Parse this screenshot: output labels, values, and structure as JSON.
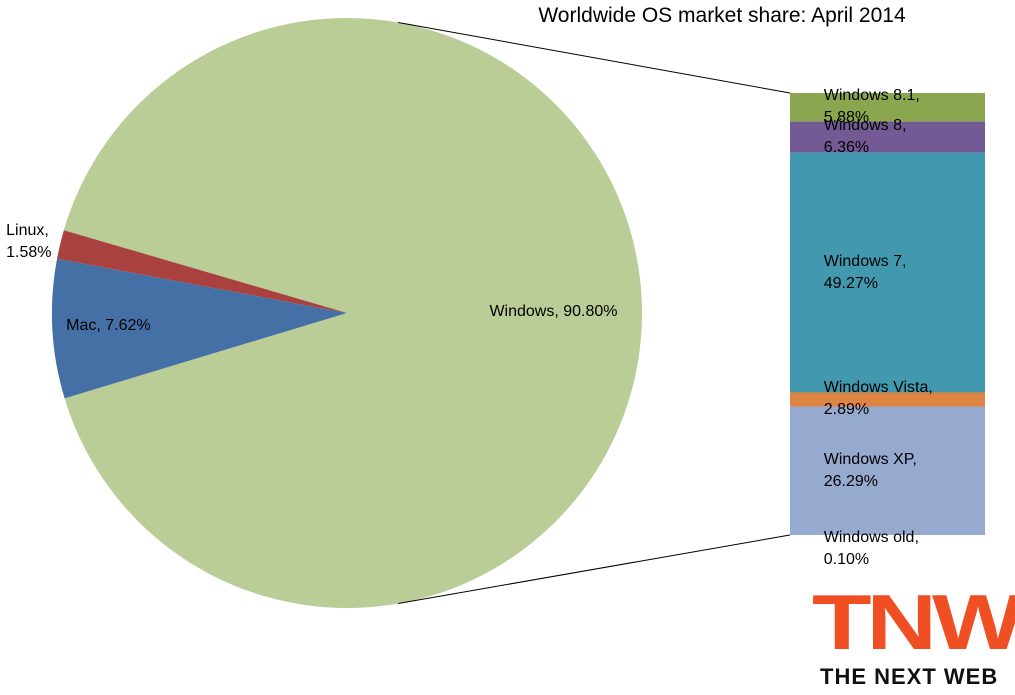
{
  "chart_data": {
    "type": "pie",
    "title": "Worldwide OS market share: April 2014",
    "values": [
      90.8,
      7.62,
      1.58
    ],
    "value_labels": [
      "Windows, 90.80%",
      "Mac, 7.62%",
      "Linux,\n1.58%"
    ],
    "colors": [
      "#bacd96",
      "#4470a6",
      "#a9423f"
    ],
    "breakdown": {
      "values": [
        5.88,
        6.36,
        49.27,
        2.89,
        26.29,
        0.1
      ],
      "value_labels": [
        "Windows 8.1, 5.88%",
        "Windows 8, 6.36%",
        "Windows 7, 49.27%",
        "Windows Vista, 2.89%",
        "Windows XP, 26.29%",
        "Windows old, 0.10%"
      ],
      "colors": [
        "#8aa64e",
        "#735a94",
        "#4298ae",
        "#de8543",
        "#96a9cf",
        "#96a9cf"
      ]
    }
  },
  "logo": {
    "mark": "TNW",
    "name": "THE NEXT WEB"
  }
}
